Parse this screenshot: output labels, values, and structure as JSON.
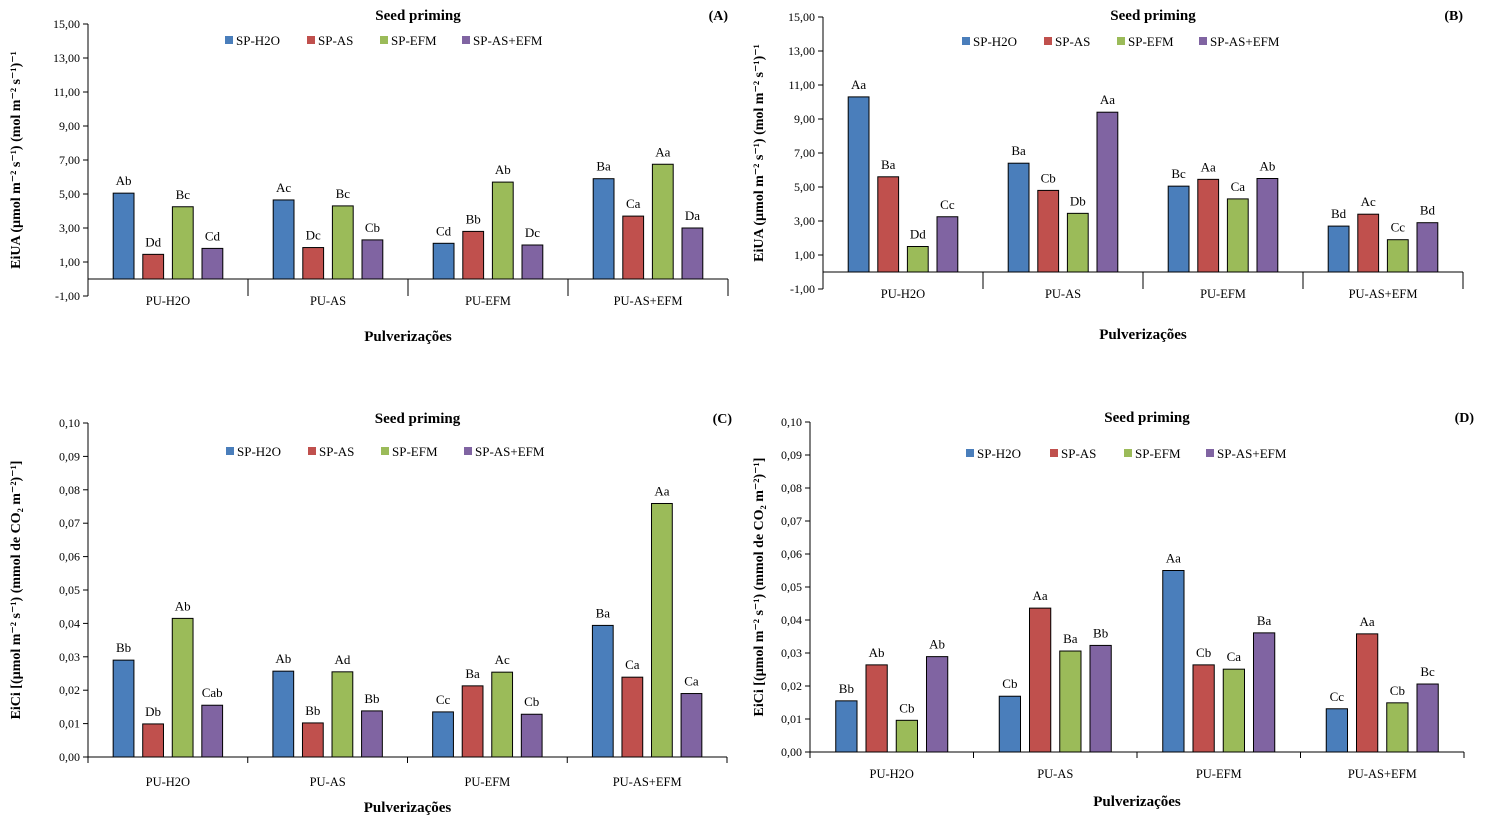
{
  "colors": {
    "SP-H2O": "#4a7ebb",
    "SP-AS": "#c0504d",
    "SP-EFM": "#9bbb59",
    "SP-AS+EFM": "#8064a2"
  },
  "chart_data": [
    {
      "type": "bar",
      "panel": "(A)",
      "title": "Seed priming",
      "xlabel": "Pulverizações",
      "ylabel": "EiUA  (µmol m⁻² s⁻¹) (mol  m⁻² s⁻¹)⁻¹",
      "ylim": [
        -1,
        15
      ],
      "yticks": [
        "-1,00",
        "1,00",
        "3,00",
        "5,00",
        "7,00",
        "9,00",
        "11,00",
        "13,00",
        "15,00"
      ],
      "categories": [
        "PU-H2O",
        "PU-AS",
        "PU-EFM",
        "PU-AS+EFM"
      ],
      "series": [
        {
          "name": "SP-H2O",
          "values": [
            5.05,
            4.65,
            2.1,
            5.9
          ],
          "labels": [
            "Ab",
            "Ac",
            "Cd",
            "Ba"
          ]
        },
        {
          "name": "SP-AS",
          "values": [
            1.45,
            1.85,
            2.8,
            3.7
          ],
          "labels": [
            "Dd",
            "Dc",
            "Bb",
            "Ca"
          ]
        },
        {
          "name": "SP-EFM",
          "values": [
            4.25,
            4.3,
            5.7,
            6.75
          ],
          "labels": [
            "Bc",
            "Bc",
            "Ab",
            "Aa"
          ]
        },
        {
          "name": "SP-AS+EFM",
          "values": [
            1.8,
            2.3,
            2.0,
            3.0
          ],
          "labels": [
            "Cd",
            "Cb",
            "Dc",
            "Da"
          ]
        }
      ]
    },
    {
      "type": "bar",
      "panel": "(B)",
      "title": "Seed priming",
      "xlabel": "Pulverizações",
      "ylabel": "EiUA  (µmol m⁻² s⁻¹) (mol  m⁻² s⁻¹)⁻¹",
      "ylim": [
        -1,
        15
      ],
      "yticks": [
        "-1,00",
        "1,00",
        "3,00",
        "5,00",
        "7,00",
        "9,00",
        "11,00",
        "13,00",
        "15,00"
      ],
      "categories": [
        "PU-H2O",
        "PU-AS",
        "PU-EFM",
        "PU-AS+EFM"
      ],
      "series": [
        {
          "name": "SP-H2O",
          "values": [
            10.3,
            6.4,
            5.05,
            2.7
          ],
          "labels": [
            "Aa",
            "Ba",
            "Bc",
            "Bd"
          ]
        },
        {
          "name": "SP-AS",
          "values": [
            5.6,
            4.8,
            5.45,
            3.4
          ],
          "labels": [
            "Ba",
            "Cb",
            "Aa",
            "Ac"
          ]
        },
        {
          "name": "SP-EFM",
          "values": [
            1.5,
            3.45,
            4.3,
            1.9
          ],
          "labels": [
            "Dd",
            "Db",
            "Ca",
            "Cc"
          ]
        },
        {
          "name": "SP-AS+EFM",
          "values": [
            3.25,
            9.4,
            5.5,
            2.9
          ],
          "labels": [
            "Cc",
            "Aa",
            "Ab",
            "Bd"
          ]
        }
      ]
    },
    {
      "type": "bar",
      "panel": "(C)",
      "title": "Seed priming",
      "xlabel": "Pulverizações",
      "ylabel": "EiCi [(µmol m⁻² s⁻¹) (mmol de CO₂ m⁻²)⁻¹]",
      "ylim": [
        0,
        0.1
      ],
      "yticks": [
        "0,00",
        "0,01",
        "0,02",
        "0,03",
        "0,04",
        "0,05",
        "0,06",
        "0,07",
        "0,08",
        "0,09",
        "0,10"
      ],
      "categories": [
        "PU-H2O",
        "PU-AS",
        "PU-EFM",
        "PU-AS+EFM"
      ],
      "series": [
        {
          "name": "SP-H2O",
          "values": [
            0.029,
            0.0257,
            0.0135,
            0.0394
          ],
          "labels": [
            "Bb",
            "Ab",
            "Cc",
            "Ba"
          ]
        },
        {
          "name": "SP-AS",
          "values": [
            0.0099,
            0.0102,
            0.0213,
            0.0239
          ],
          "labels": [
            "Db",
            "Bb",
            "Ba",
            "Ca"
          ]
        },
        {
          "name": "SP-EFM",
          "values": [
            0.0415,
            0.0255,
            0.0254,
            0.0759
          ],
          "labels": [
            "Ab",
            "Ad",
            "Ac",
            "Aa"
          ]
        },
        {
          "name": "SP-AS+EFM",
          "values": [
            0.0155,
            0.0138,
            0.0128,
            0.019
          ],
          "labels": [
            "Cab",
            "Bb",
            "Cb",
            "Ca"
          ]
        }
      ]
    },
    {
      "type": "bar",
      "panel": "(D)",
      "title": "Seed priming",
      "xlabel": "Pulverizações",
      "ylabel": "EiCi [(µmol m⁻² s⁻¹) (mmol de CO₂ m⁻²)⁻¹]",
      "ylim": [
        0,
        0.1
      ],
      "yticks": [
        "0,00",
        "0,01",
        "0,02",
        "0,03",
        "0,04",
        "0,05",
        "0,06",
        "0,07",
        "0,08",
        "0,09",
        "0,10"
      ],
      "categories": [
        "PU-H2O",
        "PU-AS",
        "PU-EFM",
        "PU-AS+EFM"
      ],
      "series": [
        {
          "name": "SP-H2O",
          "values": [
            0.0155,
            0.0169,
            0.055,
            0.0131
          ],
          "labels": [
            "Bb",
            "Cb",
            "Aa",
            "Cc"
          ]
        },
        {
          "name": "SP-AS",
          "values": [
            0.0264,
            0.0436,
            0.0264,
            0.0358
          ],
          "labels": [
            "Ab",
            "Aa",
            "Cb",
            "Aa"
          ]
        },
        {
          "name": "SP-EFM",
          "values": [
            0.0096,
            0.0306,
            0.0251,
            0.0149
          ],
          "labels": [
            "Cb",
            "Ba",
            "Ca",
            "Cb"
          ]
        },
        {
          "name": "SP-AS+EFM",
          "values": [
            0.0289,
            0.0323,
            0.0361,
            0.0206
          ],
          "labels": [
            "Ab",
            "Bb",
            "Ba",
            "Bc"
          ]
        }
      ]
    }
  ]
}
